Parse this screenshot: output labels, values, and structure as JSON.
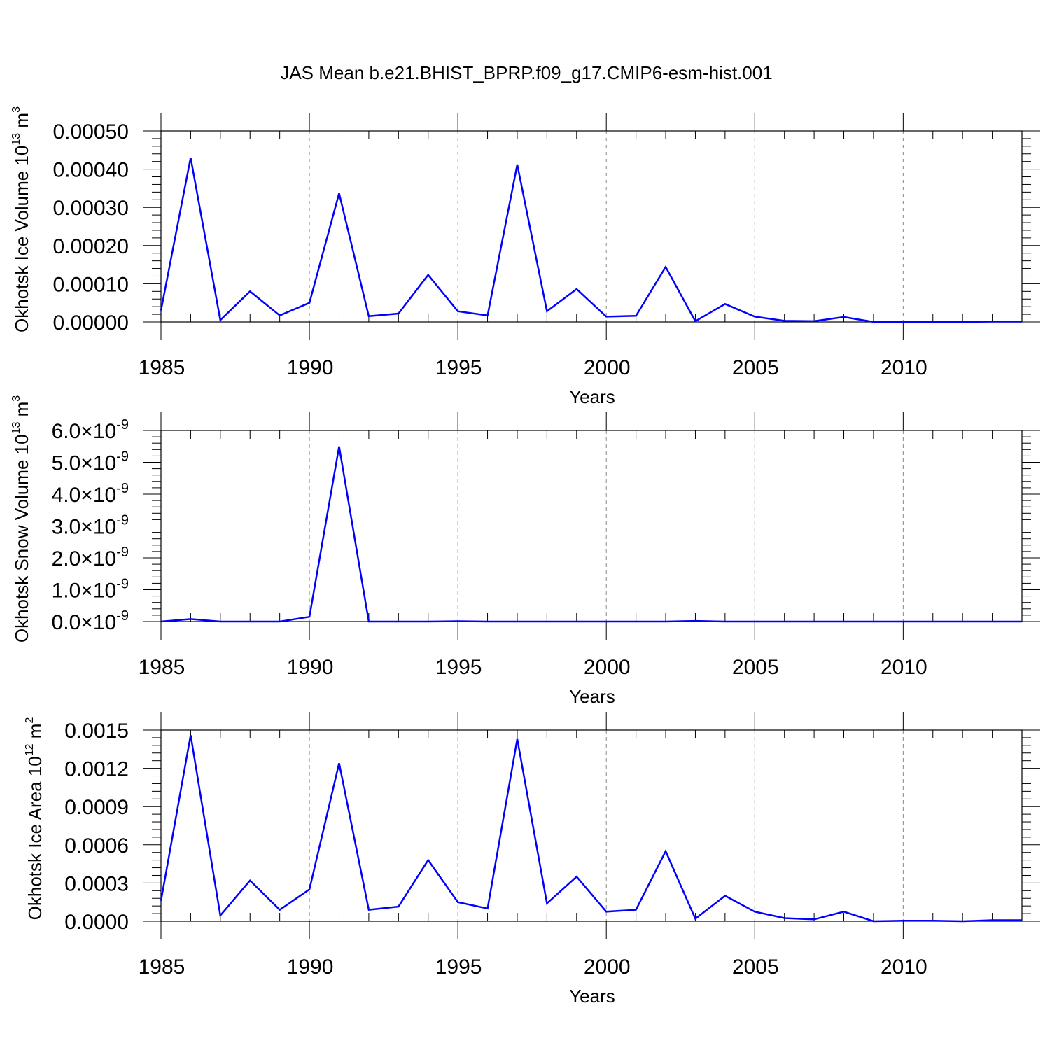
{
  "figure_title": "JAS Mean b.e21.BHIST_BPRP.f09_g17.CMIP6-esm-hist.001",
  "colors": {
    "series": "#0000ff",
    "axis": "#000000",
    "grid": "#888888",
    "background": "#ffffff"
  },
  "chart_data": [
    {
      "type": "line",
      "title": "JAS Mean b.e21.BHIST_BPRP.f09_g17.CMIP6-esm-hist.001",
      "xlabel": "Years",
      "ylabel": "Okhotsk Ice Volume",
      "ylabel_unit_base": "10",
      "ylabel_unit_exp": "13",
      "ylabel_unit_tail": " m",
      "ylabel_unit_tail_exp": "3",
      "xlim": [
        1985,
        2014
      ],
      "ylim": [
        0,
        0.0005
      ],
      "x_ticks": [
        1985,
        1990,
        1995,
        2000,
        2005,
        2010
      ],
      "y_ticks": [
        0,
        0.0001,
        0.0002,
        0.0003,
        0.0004,
        0.0005
      ],
      "y_tick_labels": [
        "0.00000",
        "0.00010",
        "0.00020",
        "0.00030",
        "0.00040",
        "0.00050"
      ],
      "grid": "vertical dashed",
      "series": [
        {
          "x": [
            1985,
            1986,
            1987,
            1988,
            1989,
            1990,
            1991,
            1992,
            1993,
            1994,
            1995,
            1996,
            1997,
            1998,
            1999,
            2000,
            2001,
            2002,
            2003,
            2004,
            2005,
            2006,
            2007,
            2008,
            2009,
            2010,
            2011,
            2012,
            2013,
            2014
          ],
          "values": [
            3e-05,
            0.00043,
            5e-06,
            8e-05,
            1.7e-05,
            5e-05,
            0.000337,
            1.5e-05,
            2.2e-05,
            0.000123,
            2.8e-05,
            1.7e-05,
            0.000412,
            2.8e-05,
            8.6e-05,
            1.4e-05,
            1.6e-05,
            0.000144,
            2e-06,
            4.7e-05,
            1.4e-05,
            3e-06,
            2e-06,
            1.3e-05,
            0.0,
            0.0,
            0.0,
            0.0,
            1e-06,
            1e-06
          ]
        }
      ]
    },
    {
      "type": "line",
      "xlabel": "Years",
      "ylabel": "Okhotsk Snow Volume",
      "ylabel_unit_base": "10",
      "ylabel_unit_exp": "13",
      "ylabel_unit_tail": " m",
      "ylabel_unit_tail_exp": "3",
      "xlim": [
        1985,
        2014
      ],
      "ylim": [
        0,
        6e-09
      ],
      "x_ticks": [
        1985,
        1990,
        1995,
        2000,
        2005,
        2010
      ],
      "y_ticks": [
        0,
        1e-09,
        2e-09,
        3e-09,
        4e-09,
        5e-09,
        6e-09
      ],
      "y_tick_mantissas": [
        "0.0",
        "1.0",
        "2.0",
        "3.0",
        "4.0",
        "5.0",
        "6.0"
      ],
      "y_tick_times": "×",
      "y_tick_base": "10",
      "y_tick_exp": "-9",
      "grid": "vertical dashed",
      "series": [
        {
          "x": [
            1985,
            1986,
            1987,
            1988,
            1989,
            1990,
            1991,
            1992,
            1993,
            1994,
            1995,
            1996,
            1997,
            1998,
            1999,
            2000,
            2001,
            2002,
            2003,
            2004,
            2005,
            2006,
            2007,
            2008,
            2009,
            2010,
            2011,
            2012,
            2013,
            2014
          ],
          "values": [
            0.0,
            8e-11,
            0.0,
            0.0,
            0.0,
            1.5e-10,
            5.5e-09,
            0.0,
            0.0,
            0.0,
            1e-11,
            0.0,
            0.0,
            0.0,
            0.0,
            0.0,
            0.0,
            0.0,
            2e-11,
            0.0,
            0.0,
            0.0,
            0.0,
            0.0,
            0.0,
            0.0,
            0.0,
            0.0,
            0.0,
            0.0
          ]
        }
      ]
    },
    {
      "type": "line",
      "xlabel": "Years",
      "ylabel": "Okhotsk Ice Area",
      "ylabel_unit_base": "10",
      "ylabel_unit_exp": "12",
      "ylabel_unit_tail": " m",
      "ylabel_unit_tail_exp": "2",
      "xlim": [
        1985,
        2014
      ],
      "ylim": [
        0,
        0.0015
      ],
      "x_ticks": [
        1985,
        1990,
        1995,
        2000,
        2005,
        2010
      ],
      "y_ticks": [
        0,
        0.0003,
        0.0006,
        0.0009,
        0.0012,
        0.0015
      ],
      "y_tick_labels": [
        "0.0000",
        "0.0003",
        "0.0006",
        "0.0009",
        "0.0012",
        "0.0015"
      ],
      "grid": "vertical dashed",
      "series": [
        {
          "x": [
            1985,
            1986,
            1987,
            1988,
            1989,
            1990,
            1991,
            1992,
            1993,
            1994,
            1995,
            1996,
            1997,
            1998,
            1999,
            2000,
            2001,
            2002,
            2003,
            2004,
            2005,
            2006,
            2007,
            2008,
            2009,
            2010,
            2011,
            2012,
            2013,
            2014
          ],
          "values": [
            0.00016,
            0.00146,
            4.5e-05,
            0.00032,
            9e-05,
            0.00025,
            0.00124,
            9e-05,
            0.000115,
            0.00048,
            0.00015,
            0.0001,
            0.00143,
            0.00014,
            0.00035,
            7.5e-05,
            9e-05,
            0.00055,
            2e-05,
            0.0002,
            7.5e-05,
            2.5e-05,
            1.5e-05,
            7.5e-05,
            0.0,
            4.5e-06,
            4.5e-06,
            0.0,
            8e-06,
            8e-06
          ]
        }
      ]
    }
  ]
}
